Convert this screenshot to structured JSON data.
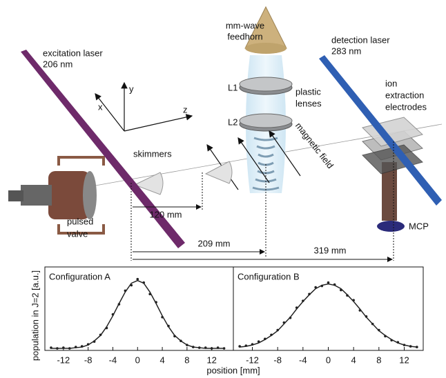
{
  "diagram": {
    "feedhorn": [
      "mm-wave",
      "feedhorn"
    ],
    "excitation": [
      "excitation laser",
      "206 nm"
    ],
    "detection": [
      "detection laser",
      "283 nm"
    ],
    "electrodes": [
      "ion",
      "extraction",
      "electrodes"
    ],
    "lens1": "L1",
    "lens2": "L2",
    "lenses": [
      "plastic",
      "lenses"
    ],
    "field": "magnetic field",
    "skimmers": "skimmers",
    "axes": {
      "x": "x",
      "y": "y",
      "z": "z"
    },
    "valve": [
      "pulsed",
      "valve"
    ],
    "mcp": "MCP",
    "distances": [
      "120 mm",
      "209 mm",
      "319 mm"
    ]
  },
  "chart_data": [
    {
      "type": "scatter",
      "title": "Configuration A",
      "ylabel": "population in J=2 [a.u.]",
      "xlabel": "position [mm]",
      "x": [
        -14,
        -13,
        -12,
        -11,
        -10,
        -9,
        -8,
        -7,
        -6,
        -5,
        -4,
        -3,
        -2,
        -1,
        0,
        1,
        2,
        3,
        4,
        5,
        6,
        7,
        8,
        9,
        10,
        11,
        12,
        13,
        14
      ],
      "values": [
        0.01,
        0.0,
        0.01,
        0.0,
        0.02,
        0.03,
        0.06,
        0.1,
        0.2,
        0.3,
        0.5,
        0.65,
        0.85,
        0.93,
        1.02,
        0.97,
        0.8,
        0.68,
        0.46,
        0.33,
        0.18,
        0.11,
        0.05,
        0.02,
        0.01,
        0.01,
        0.0,
        0.01,
        0.0
      ],
      "fit": [
        0.0,
        0.0,
        0.0,
        0.0,
        0.01,
        0.02,
        0.05,
        0.11,
        0.19,
        0.32,
        0.48,
        0.66,
        0.83,
        0.96,
        1.0,
        0.96,
        0.83,
        0.66,
        0.48,
        0.32,
        0.19,
        0.11,
        0.05,
        0.02,
        0.01,
        0.0,
        0.0,
        0.0,
        0.0
      ],
      "color": "#222222",
      "xlim": [
        -15,
        15.5
      ],
      "ylim": [
        -0.03,
        1.2
      ],
      "xticks": [
        -12,
        -8,
        -4,
        0,
        4,
        8,
        12
      ]
    },
    {
      "type": "scatter",
      "title": "Configuration B",
      "x": [
        -14,
        -13,
        -12,
        -11,
        -10,
        -9,
        -8,
        -7,
        -6,
        -5,
        -4,
        -3,
        -2,
        -1,
        0,
        1,
        2,
        3,
        4,
        5,
        6,
        7,
        8,
        9,
        10,
        11,
        12,
        13,
        14
      ],
      "values": [
        0.03,
        0.04,
        0.06,
        0.1,
        0.14,
        0.2,
        0.27,
        0.38,
        0.45,
        0.6,
        0.7,
        0.8,
        0.9,
        0.92,
        0.97,
        0.94,
        0.86,
        0.78,
        0.71,
        0.56,
        0.47,
        0.36,
        0.27,
        0.18,
        0.12,
        0.09,
        0.05,
        0.03,
        0.02
      ],
      "fit": [
        0.02,
        0.03,
        0.05,
        0.08,
        0.13,
        0.19,
        0.26,
        0.36,
        0.46,
        0.58,
        0.69,
        0.79,
        0.88,
        0.93,
        0.95,
        0.93,
        0.88,
        0.79,
        0.69,
        0.58,
        0.46,
        0.36,
        0.26,
        0.19,
        0.13,
        0.08,
        0.05,
        0.03,
        0.02
      ],
      "color": "#222222",
      "xlim": [
        -15,
        15
      ],
      "ylim": [
        -0.03,
        1.2
      ],
      "xticks": [
        -12,
        -8,
        -4,
        0,
        4,
        8,
        12
      ]
    }
  ]
}
